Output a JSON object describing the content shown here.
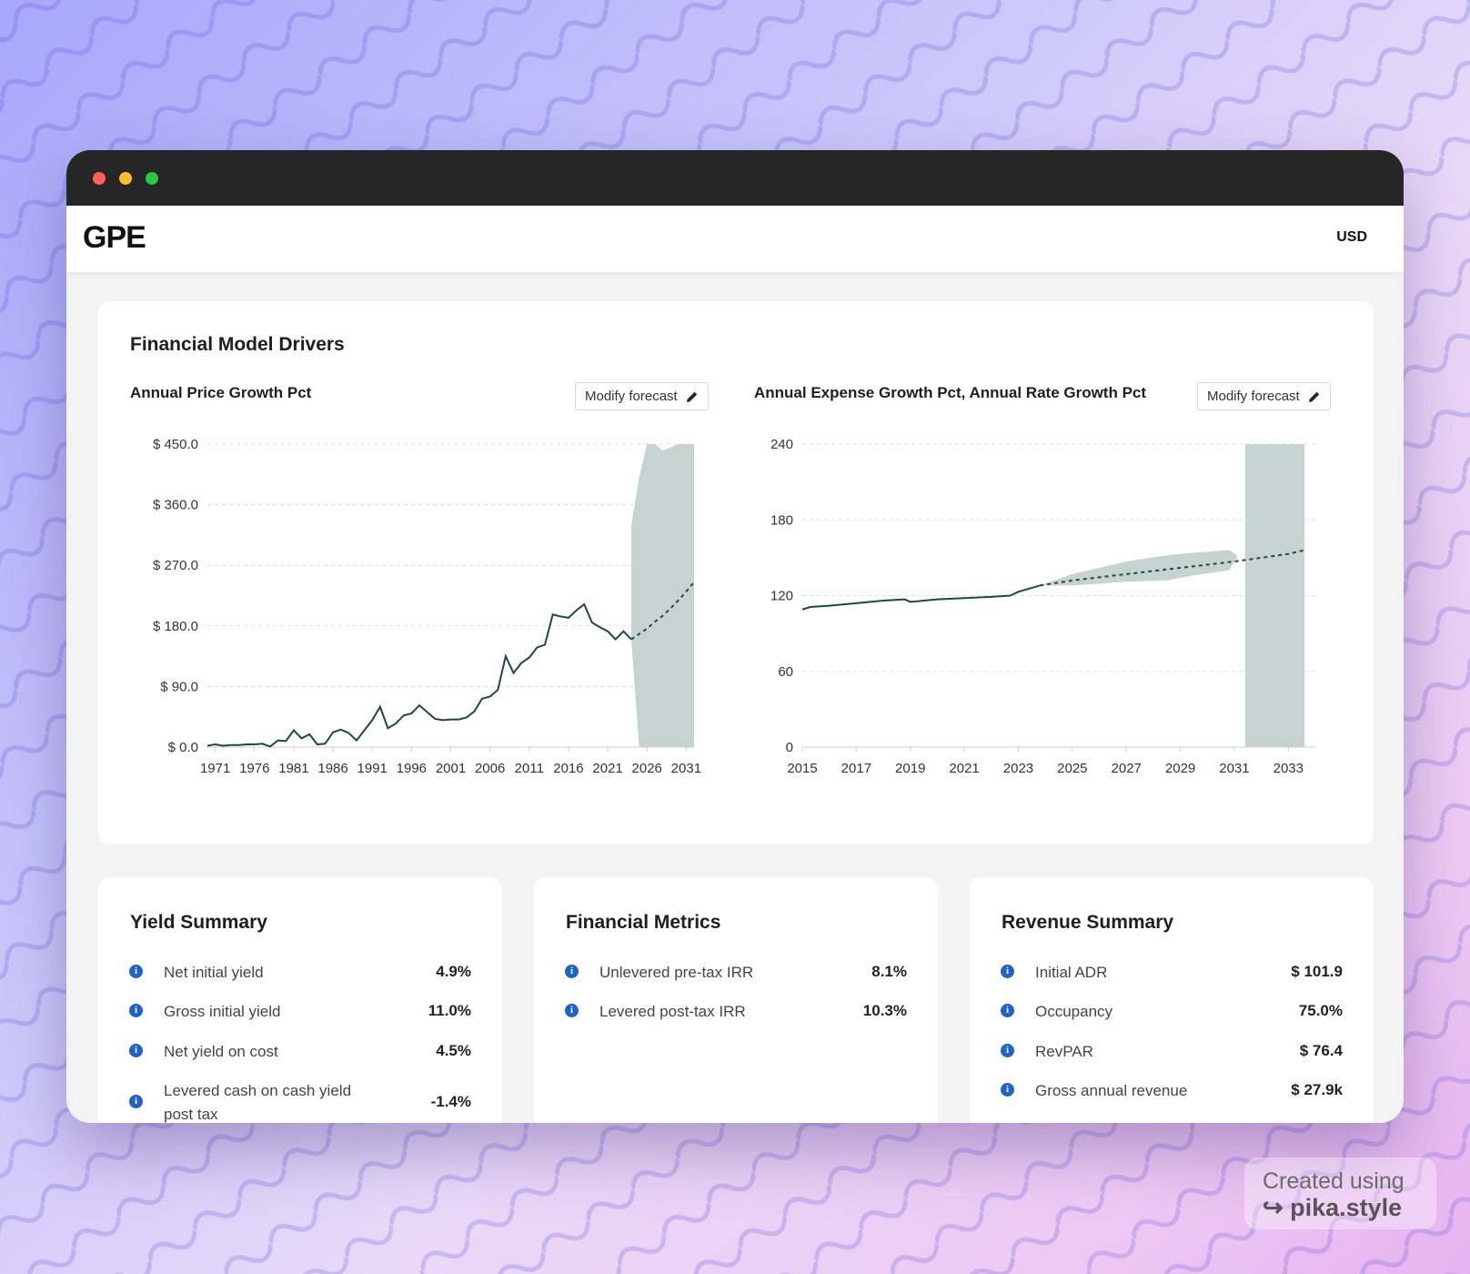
{
  "app": {
    "logo": "GPE",
    "currency": "USD"
  },
  "drivers": {
    "title": "Financial Model Drivers",
    "left_chart_title": "Annual Price Growth Pct",
    "right_chart_title": "Annual Expense Growth Pct, Annual Rate Growth Pct",
    "modify_label": "Modify forecast"
  },
  "chart_data": [
    {
      "type": "line",
      "title": "Annual Price Growth Pct",
      "ylim": [
        0,
        450
      ],
      "yticks": [
        "$ 450.0",
        "$ 360.0",
        "$ 270.0",
        "$ 180.0",
        "$ 90.0",
        "$ 0.0"
      ],
      "xlim": [
        1970,
        2032
      ],
      "xticks": [
        "1971",
        "1976",
        "1981",
        "1986",
        "1991",
        "1996",
        "2001",
        "2006",
        "2011",
        "2016",
        "2021",
        "2026",
        "2031"
      ],
      "grid": true,
      "series": [
        {
          "x": [
            1970,
            1971,
            1972,
            1973,
            1974,
            1975,
            1976,
            1977,
            1978,
            1979,
            1980,
            1981,
            1982,
            1983,
            1984,
            1985,
            1986,
            1987,
            1988,
            1989,
            1990,
            1991,
            1992,
            1993,
            1994,
            1995,
            1996,
            1997,
            1998,
            1999,
            2000,
            2001,
            2002,
            2003,
            2004,
            2005,
            2006,
            2007,
            2008,
            2009,
            2010,
            2011,
            2012,
            2013,
            2014,
            2015,
            2016,
            2017,
            2018,
            2019,
            2020,
            2021,
            2022,
            2023,
            2024
          ],
          "y": [
            2,
            4,
            2,
            3,
            3,
            4,
            4,
            5,
            1,
            10,
            9,
            25,
            13,
            19,
            4,
            5,
            22,
            26,
            21,
            10,
            25,
            40,
            60,
            28,
            35,
            47,
            50,
            62,
            52,
            42,
            40,
            41,
            41,
            44,
            53,
            72,
            75,
            85,
            135,
            110,
            125,
            133,
            148,
            152,
            197,
            194,
            192,
            203,
            212,
            185,
            178,
            172,
            160,
            172,
            160
          ]
        },
        {
          "x": [
            2024,
            2025,
            2026,
            2027,
            2028,
            2029,
            2030,
            2031,
            2032
          ],
          "y": [
            160,
            168,
            176,
            186,
            195,
            206,
            218,
            231,
            245
          ]
        }
      ],
      "forecast_band": {
        "x": [
          2024,
          2025,
          2026,
          2027,
          2028,
          2030,
          2032
        ],
        "upper": [
          330,
          400,
          450,
          450,
          440,
          450,
          450
        ],
        "lower": [
          160,
          0,
          0,
          0,
          0,
          0,
          0
        ]
      }
    },
    {
      "type": "line",
      "title": "Annual Expense Growth Pct, Annual Rate Growth Pct",
      "ylim": [
        0,
        240
      ],
      "yticks": [
        "240",
        "180",
        "120",
        "60",
        "0"
      ],
      "xlim": [
        2015,
        2034
      ],
      "xticks": [
        "2015",
        "2017",
        "2019",
        "2021",
        "2023",
        "2025",
        "2027",
        "2029",
        "2031",
        "2033"
      ],
      "grid": true,
      "series": [
        {
          "x": [
            2015,
            2015.3,
            2016,
            2017,
            2018,
            2018.8,
            2019,
            2020,
            2021,
            2022,
            2022.7,
            2023,
            2023.8
          ],
          "y": [
            109,
            111,
            112,
            114,
            116,
            117,
            115,
            117,
            118,
            119,
            120,
            123,
            128
          ]
        },
        {
          "x": [
            2023.8,
            2025,
            2027,
            2029,
            2031,
            2033,
            2033.6
          ],
          "y": [
            128,
            132,
            137,
            142,
            147,
            153,
            156
          ]
        }
      ],
      "forecast_band": {
        "x": [
          2023.8,
          2025,
          2027,
          2028.5,
          2029.5,
          2030.8,
          2031.1
        ],
        "upper": [
          128,
          137,
          147,
          152,
          154,
          156,
          152
        ],
        "lower": [
          128,
          128,
          131,
          132,
          136,
          140,
          150
        ]
      },
      "forecast_region": {
        "x": [
          2031.4,
          2033.6
        ],
        "y": [
          0,
          240
        ]
      }
    }
  ],
  "yield_summary": {
    "title": "Yield Summary",
    "rows": [
      {
        "label": "Net initial yield",
        "value": "4.9%"
      },
      {
        "label": "Gross initial yield",
        "value": "11.0%"
      },
      {
        "label": "Net yield on cost",
        "value": "4.5%"
      },
      {
        "label": "Levered cash on cash yield post tax",
        "value": "-1.4%"
      }
    ]
  },
  "financial_metrics": {
    "title": "Financial Metrics",
    "rows": [
      {
        "label": "Unlevered pre-tax IRR",
        "value": "8.1%"
      },
      {
        "label": "Levered post-tax IRR",
        "value": "10.3%"
      }
    ]
  },
  "revenue_summary": {
    "title": "Revenue Summary",
    "rows": [
      {
        "label": "Initial ADR",
        "value": "$ 101.9"
      },
      {
        "label": "Occupancy",
        "value": "75.0%"
      },
      {
        "label": "RevPAR",
        "value": "$ 76.4"
      },
      {
        "label": "Gross annual revenue",
        "value": "$ 27.9k"
      }
    ]
  },
  "badge": {
    "line1": "Created using",
    "line2": "pika.style"
  },
  "colors": {
    "line": "#1d4a44",
    "band": "#c6d3d1",
    "info": "#1e63c9"
  }
}
